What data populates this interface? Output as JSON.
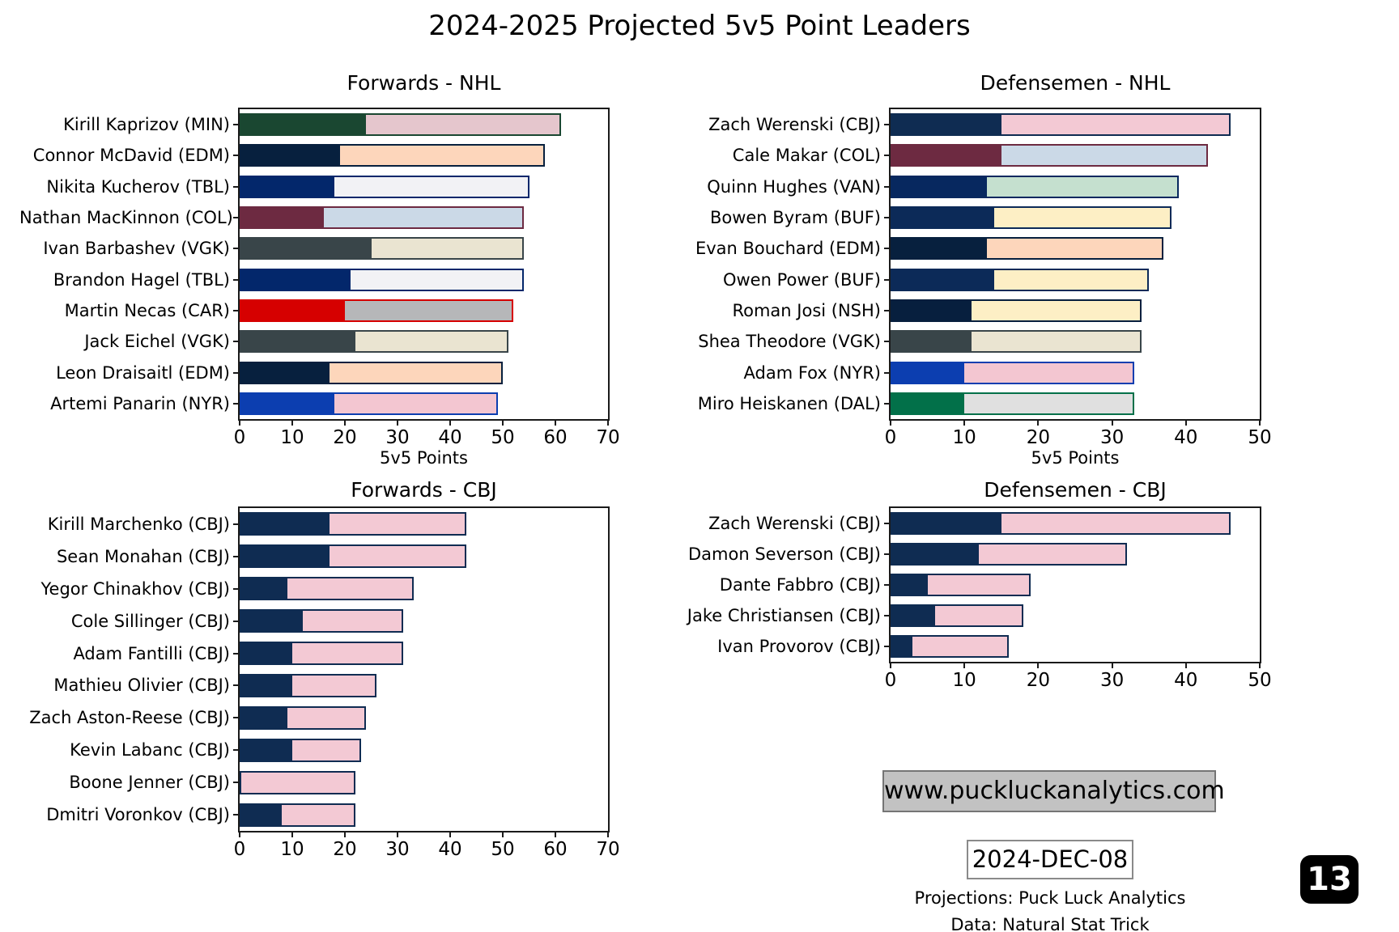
{
  "title": "2024-2025 Projected 5v5 Point Leaders",
  "footer": {
    "website": "www.puckluckanalytics.com",
    "date": "2024-DEC-08",
    "credit_line1": "Projections: Puck Luck Analytics",
    "credit_line2": "Data: Natural Stat Trick",
    "page_number": "13"
  },
  "team_colors": {
    "MIN": {
      "dark": "#1a4731",
      "light": "#e5c6cd"
    },
    "EDM": {
      "dark": "#07203e",
      "light": "#fdd6bb"
    },
    "TBL": {
      "dark": "#03276b",
      "light": "#f2f2f5"
    },
    "COL": {
      "dark": "#6d2a41",
      "light": "#cbd9e7"
    },
    "VGK": {
      "dark": "#394549",
      "light": "#eae4d1"
    },
    "CAR": {
      "dark": "#d60000",
      "light": "#b6b7b9"
    },
    "NYR": {
      "dark": "#0c3eb0",
      "light": "#f3c6d1"
    },
    "CBJ": {
      "dark": "#0f2c52",
      "light": "#f3c9d4"
    },
    "VAN": {
      "dark": "#07285f",
      "light": "#c5e0cf"
    },
    "BUF": {
      "dark": "#0c2a58",
      "light": "#fdefc5"
    },
    "NSH": {
      "dark": "#071f3e",
      "light": "#fdefc5"
    },
    "DAL": {
      "dark": "#027049",
      "light": "#e0e0e0"
    }
  },
  "chart_data": [
    {
      "type": "bar",
      "orientation": "horizontal",
      "title": "Forwards - NHL",
      "xlabel": "5v5 Points",
      "xlim": [
        0,
        70
      ],
      "xticks": [
        0,
        10,
        20,
        30,
        40,
        50,
        60,
        70
      ],
      "note": "each bar = dark team-color segment (dark_value) stacked with light segment up to total_value",
      "players": [
        {
          "label": "Kirill Kaprizov (MIN)",
          "team": "MIN",
          "dark_value": 24,
          "total_value": 61
        },
        {
          "label": "Connor McDavid (EDM)",
          "team": "EDM",
          "dark_value": 19,
          "total_value": 58
        },
        {
          "label": "Nikita Kucherov (TBL)",
          "team": "TBL",
          "dark_value": 18,
          "total_value": 55
        },
        {
          "label": "Nathan MacKinnon (COL)",
          "team": "COL",
          "dark_value": 16,
          "total_value": 54
        },
        {
          "label": "Ivan Barbashev (VGK)",
          "team": "VGK",
          "dark_value": 25,
          "total_value": 54
        },
        {
          "label": "Brandon Hagel (TBL)",
          "team": "TBL",
          "dark_value": 21,
          "total_value": 54
        },
        {
          "label": "Martin Necas (CAR)",
          "team": "CAR",
          "dark_value": 20,
          "total_value": 52
        },
        {
          "label": "Jack Eichel (VGK)",
          "team": "VGK",
          "dark_value": 22,
          "total_value": 51
        },
        {
          "label": "Leon Draisaitl (EDM)",
          "team": "EDM",
          "dark_value": 17,
          "total_value": 50
        },
        {
          "label": "Artemi Panarin (NYR)",
          "team": "NYR",
          "dark_value": 18,
          "total_value": 49
        }
      ]
    },
    {
      "type": "bar",
      "orientation": "horizontal",
      "title": "Defensemen - NHL",
      "xlabel": "5v5 Points",
      "xlim": [
        0,
        50
      ],
      "xticks": [
        0,
        10,
        20,
        30,
        40,
        50
      ],
      "players": [
        {
          "label": "Zach Werenski (CBJ)",
          "team": "CBJ",
          "dark_value": 15,
          "total_value": 46
        },
        {
          "label": "Cale Makar (COL)",
          "team": "COL",
          "dark_value": 15,
          "total_value": 43
        },
        {
          "label": "Quinn Hughes (VAN)",
          "team": "VAN",
          "dark_value": 13,
          "total_value": 39
        },
        {
          "label": "Bowen Byram (BUF)",
          "team": "BUF",
          "dark_value": 14,
          "total_value": 38
        },
        {
          "label": "Evan Bouchard (EDM)",
          "team": "EDM",
          "dark_value": 13,
          "total_value": 37
        },
        {
          "label": "Owen Power (BUF)",
          "team": "BUF",
          "dark_value": 14,
          "total_value": 35
        },
        {
          "label": "Roman Josi (NSH)",
          "team": "NSH",
          "dark_value": 11,
          "total_value": 34
        },
        {
          "label": "Shea Theodore (VGK)",
          "team": "VGK",
          "dark_value": 11,
          "total_value": 34
        },
        {
          "label": "Adam Fox (NYR)",
          "team": "NYR",
          "dark_value": 10,
          "total_value": 33
        },
        {
          "label": "Miro Heiskanen (DAL)",
          "team": "DAL",
          "dark_value": 10,
          "total_value": 33
        }
      ]
    },
    {
      "type": "bar",
      "orientation": "horizontal",
      "title": "Forwards - CBJ",
      "xlabel": "",
      "xlim": [
        0,
        70
      ],
      "xticks": [
        0,
        10,
        20,
        30,
        40,
        50,
        60,
        70
      ],
      "players": [
        {
          "label": "Kirill Marchenko (CBJ)",
          "team": "CBJ",
          "dark_value": 17,
          "total_value": 43
        },
        {
          "label": "Sean Monahan (CBJ)",
          "team": "CBJ",
          "dark_value": 17,
          "total_value": 43
        },
        {
          "label": "Yegor Chinakhov (CBJ)",
          "team": "CBJ",
          "dark_value": 9,
          "total_value": 33
        },
        {
          "label": "Cole Sillinger (CBJ)",
          "team": "CBJ",
          "dark_value": 12,
          "total_value": 31
        },
        {
          "label": "Adam Fantilli (CBJ)",
          "team": "CBJ",
          "dark_value": 10,
          "total_value": 31
        },
        {
          "label": "Mathieu Olivier (CBJ)",
          "team": "CBJ",
          "dark_value": 10,
          "total_value": 26
        },
        {
          "label": "Zach Aston-Reese (CBJ)",
          "team": "CBJ",
          "dark_value": 9,
          "total_value": 24
        },
        {
          "label": "Kevin Labanc (CBJ)",
          "team": "CBJ",
          "dark_value": 10,
          "total_value": 23
        },
        {
          "label": "Boone Jenner (CBJ)",
          "team": "CBJ",
          "dark_value": 0,
          "total_value": 22
        },
        {
          "label": "Dmitri Voronkov (CBJ)",
          "team": "CBJ",
          "dark_value": 8,
          "total_value": 22
        }
      ]
    },
    {
      "type": "bar",
      "orientation": "horizontal",
      "title": "Defensemen - CBJ",
      "xlabel": "",
      "xlim": [
        0,
        50
      ],
      "xticks": [
        0,
        10,
        20,
        30,
        40,
        50
      ],
      "players": [
        {
          "label": "Zach Werenski (CBJ)",
          "team": "CBJ",
          "dark_value": 15,
          "total_value": 46
        },
        {
          "label": "Damon Severson (CBJ)",
          "team": "CBJ",
          "dark_value": 12,
          "total_value": 32
        },
        {
          "label": "Dante Fabbro (CBJ)",
          "team": "CBJ",
          "dark_value": 5,
          "total_value": 19
        },
        {
          "label": "Jake Christiansen (CBJ)",
          "team": "CBJ",
          "dark_value": 6,
          "total_value": 18
        },
        {
          "label": "Ivan Provorov (CBJ)",
          "team": "CBJ",
          "dark_value": 3,
          "total_value": 16
        }
      ]
    }
  ]
}
